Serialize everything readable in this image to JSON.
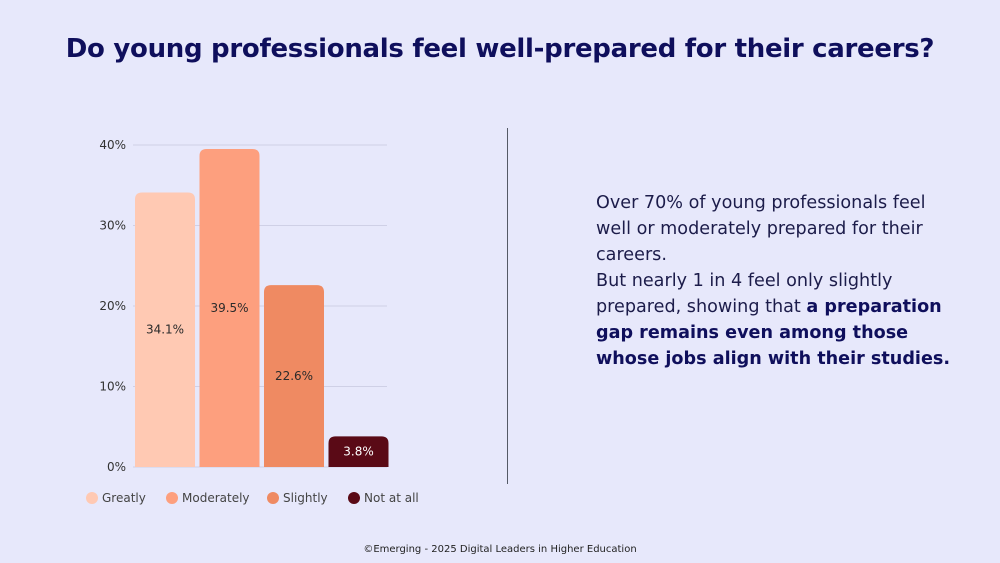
{
  "title": "Do young professionals feel well-prepared for their careers?",
  "panel": {
    "para1": "Over 70% of young professionals feel well or moderately prepared for their careers.",
    "para2_plain": "But nearly 1 in 4 feel only slightly prepared, showing that ",
    "para2_bold": "a preparation gap remains even among those whose jobs align with their studies."
  },
  "footer": "©Emerging - 2025 Digital Leaders in Higher Education",
  "chart_data": {
    "type": "bar",
    "categories": [
      "Greatly",
      "Moderately",
      "Slightly",
      "Not at all"
    ],
    "values": [
      34.1,
      39.5,
      22.6,
      3.8
    ],
    "data_labels": [
      "34.1%",
      "39.5%",
      "22.6%",
      "3.8%"
    ],
    "colors": [
      "#ffc9b3",
      "#fd9f7e",
      "#ef8a62",
      "#5a0a16"
    ],
    "label_colors": [
      "#2b2b2b",
      "#2b2b2b",
      "#2b2b2b",
      "#ffffff"
    ],
    "yticks": [
      "0%",
      "10%",
      "20%",
      "30%",
      "40%"
    ],
    "ylim": [
      0,
      40
    ],
    "grid": true,
    "legend_position": "bottom"
  }
}
